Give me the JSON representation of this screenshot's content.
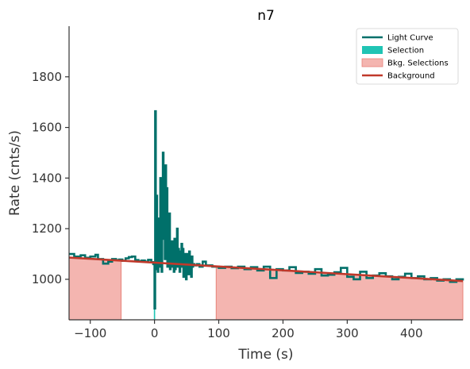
{
  "chart_data": {
    "type": "line",
    "title": "n7",
    "xlabel": "Time (s)",
    "ylabel": "Rate (cnts/s)",
    "xlim": [
      -133,
      480
    ],
    "ylim": [
      840,
      2000
    ],
    "xticks": [
      -100,
      0,
      100,
      200,
      300,
      400
    ],
    "xtick_labels": [
      "−100",
      "0",
      "100",
      "200",
      "300",
      "400"
    ],
    "yticks": [
      1000,
      1200,
      1400,
      1600,
      1800
    ],
    "ytick_labels": [
      "1000",
      "1200",
      "1400",
      "1600",
      "1800"
    ],
    "grid": false,
    "legend_position": "top-right",
    "colors": {
      "light_curve": "#00706a",
      "selection": "#20c4b4",
      "bkg_selection_fill": "#f4b5b0",
      "bkg_selection_edge": "#e8837a",
      "background": "#c0392b"
    },
    "legend": [
      {
        "label": "Light Curve",
        "kind": "line",
        "color_key": "light_curve"
      },
      {
        "label": "Selection",
        "kind": "patch",
        "color_key": "selection"
      },
      {
        "label": "Bkg. Selections",
        "kind": "patch",
        "color_key": "bkg_selection_fill"
      },
      {
        "label": "Background",
        "kind": "line",
        "color_key": "background"
      }
    ],
    "selection_interval": [
      -1,
      1
    ],
    "bkg_selections": [
      [
        -133,
        -52
      ],
      [
        96,
        480
      ]
    ],
    "background_line": {
      "x": [
        -133,
        480
      ],
      "y": [
        1086,
        993
      ]
    },
    "light_curve": {
      "x": [
        -133,
        -125,
        -115,
        -108,
        -100,
        -92,
        -88,
        -80,
        -72,
        -66,
        -60,
        -55,
        -50,
        -45,
        -40,
        -35,
        -30,
        -25,
        -20,
        -15,
        -10,
        -5,
        -2,
        0,
        1,
        2,
        3,
        4,
        5,
        6,
        7,
        8,
        9,
        10,
        11,
        12,
        13,
        14,
        15,
        16,
        17,
        18,
        19,
        20,
        21,
        22,
        23,
        24,
        25,
        26,
        27,
        28,
        29,
        30,
        31,
        32,
        33,
        34,
        35,
        36,
        37,
        38,
        39,
        40,
        41,
        42,
        43,
        44,
        45,
        46,
        47,
        48,
        49,
        50,
        51,
        52,
        53,
        54,
        55,
        56,
        57,
        58,
        59,
        60,
        62,
        66,
        70,
        75,
        80,
        90,
        100,
        110,
        120,
        130,
        140,
        150,
        160,
        170,
        180,
        190,
        200,
        210,
        220,
        230,
        240,
        250,
        260,
        270,
        280,
        290,
        300,
        310,
        320,
        330,
        340,
        350,
        360,
        370,
        380,
        390,
        400,
        410,
        420,
        430,
        440,
        450,
        460,
        470,
        480
      ],
      "y": [
        1100,
        1090,
        1095,
        1085,
        1090,
        1097,
        1080,
        1062,
        1070,
        1080,
        1076,
        1078,
        1073,
        1083,
        1088,
        1090,
        1076,
        1072,
        1074,
        1070,
        1077,
        1068,
        1060,
        885,
        1664,
        1040,
        1330,
        1180,
        1030,
        1120,
        1240,
        1050,
        1400,
        1100,
        1030,
        1160,
        1500,
        1180,
        1330,
        1080,
        1450,
        1120,
        1360,
        1050,
        1200,
        1090,
        1260,
        1040,
        1120,
        1080,
        1150,
        1050,
        1100,
        1030,
        1160,
        1040,
        1100,
        1060,
        1200,
        1050,
        1120,
        1070,
        1030,
        1110,
        1060,
        1140,
        1050,
        1120,
        1010,
        1100,
        1060,
        1090,
        1000,
        1100,
        1050,
        1080,
        1020,
        1110,
        1040,
        1070,
        1010,
        1090,
        1050,
        1060,
        1055,
        1060,
        1050,
        1070,
        1055,
        1050,
        1045,
        1050,
        1044,
        1050,
        1040,
        1048,
        1035,
        1050,
        1005,
        1040,
        1035,
        1048,
        1025,
        1030,
        1022,
        1040,
        1015,
        1018,
        1028,
        1045,
        1010,
        1000,
        1030,
        1005,
        1015,
        1024,
        1012,
        1000,
        1010,
        1022,
        1005,
        1012,
        1000,
        1005,
        995,
        1000,
        990,
        1000,
        995
      ]
    }
  }
}
